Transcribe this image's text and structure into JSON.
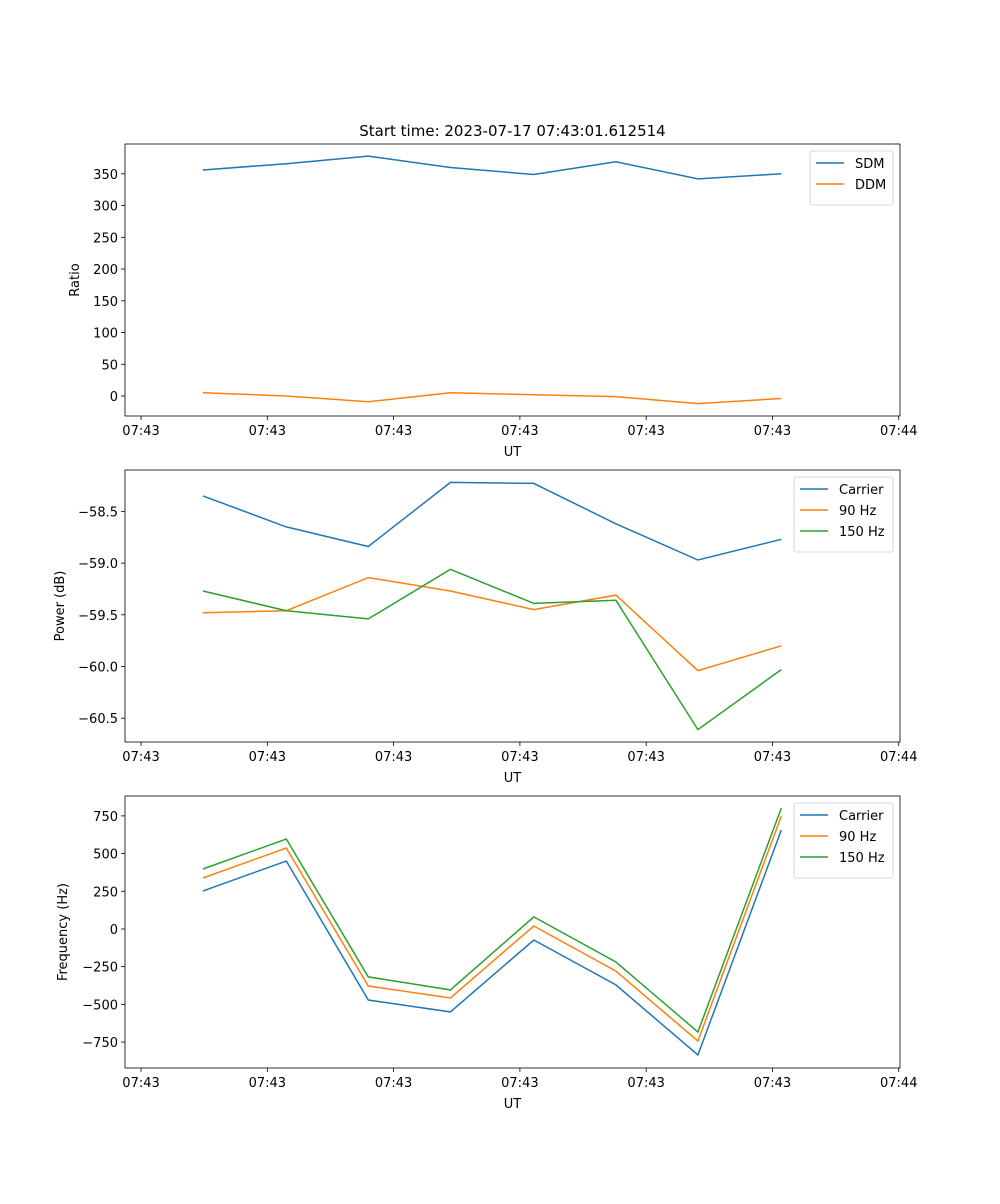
{
  "title": "Start time: 2023-07-17 07:43:01.612514",
  "colors": {
    "blue": "#1f77b4",
    "orange": "#ff7f0e",
    "green": "#2ca02c"
  },
  "chart_data": [
    {
      "type": "line",
      "title": "Start time: 2023-07-17 07:43:01.612514",
      "xlabel": "UT",
      "ylabel": "Ratio",
      "x": [
        0.49,
        1.15,
        1.8,
        2.45,
        3.11,
        3.76,
        4.41,
        5.07
      ],
      "xlim": [
        -0.127,
        6.01
      ],
      "xticks": [
        0,
        1,
        2,
        3,
        4,
        5,
        6
      ],
      "xtick_labels": [
        "07:43",
        "07:43",
        "07:43",
        "07:43",
        "07:43",
        "07:43",
        "07:44"
      ],
      "ylim": [
        -31.5,
        397
      ],
      "yticks": [
        0,
        50,
        100,
        150,
        200,
        250,
        300,
        350
      ],
      "ytick_labels": [
        "0",
        "50",
        "100",
        "150",
        "200",
        "250",
        "300",
        "350"
      ],
      "legend": "top-right",
      "series": [
        {
          "name": "SDM",
          "color": "#1f77b4",
          "values": [
            356,
            366,
            378,
            360,
            349,
            369,
            342,
            350
          ]
        },
        {
          "name": "DDM",
          "color": "#ff7f0e",
          "values": [
            5,
            0,
            -9,
            5,
            2,
            -1,
            -12,
            -4
          ]
        }
      ]
    },
    {
      "type": "line",
      "xlabel": "UT",
      "ylabel": "Power (dB)",
      "x": [
        0.49,
        1.15,
        1.8,
        2.45,
        3.11,
        3.76,
        4.41,
        5.07
      ],
      "xlim": [
        -0.127,
        6.01
      ],
      "xticks": [
        0,
        1,
        2,
        3,
        4,
        5,
        6
      ],
      "xtick_labels": [
        "07:43",
        "07:43",
        "07:43",
        "07:43",
        "07:43",
        "07:43",
        "07:44"
      ],
      "ylim": [
        -60.73,
        -58.1
      ],
      "yticks": [
        -58.5,
        -59.0,
        -59.5,
        -60.0,
        -60.5
      ],
      "ytick_labels": [
        "−58.5",
        "−59.0",
        "−59.5",
        "−60.0",
        "−60.5"
      ],
      "legend": "top-right",
      "series": [
        {
          "name": "Carrier",
          "color": "#1f77b4",
          "values": [
            -58.35,
            -58.65,
            -58.84,
            -58.22,
            -58.23,
            -58.62,
            -58.97,
            -58.77
          ]
        },
        {
          "name": "90 Hz",
          "color": "#ff7f0e",
          "values": [
            -59.48,
            -59.46,
            -59.14,
            -59.27,
            -59.45,
            -59.31,
            -60.04,
            -59.8
          ]
        },
        {
          "name": "150 Hz",
          "color": "#2ca02c",
          "values": [
            -59.27,
            -59.46,
            -59.54,
            -59.06,
            -59.39,
            -59.36,
            -60.61,
            -60.03
          ]
        }
      ]
    },
    {
      "type": "line",
      "xlabel": "UT",
      "ylabel": "Frequency (Hz)",
      "x": [
        0.49,
        1.15,
        1.8,
        2.45,
        3.11,
        3.76,
        4.41,
        5.07
      ],
      "xlim": [
        -0.127,
        6.01
      ],
      "xticks": [
        0,
        1,
        2,
        3,
        4,
        5,
        6
      ],
      "xtick_labels": [
        "07:43",
        "07:43",
        "07:43",
        "07:43",
        "07:43",
        "07:43",
        "07:44"
      ],
      "ylim": [
        -922,
        882
      ],
      "yticks": [
        750,
        500,
        250,
        0,
        -250,
        -500,
        -750
      ],
      "ytick_labels": [
        "750",
        "500",
        "250",
        "0",
        "−250",
        "−500",
        "−750"
      ],
      "legend": "top-right",
      "series": [
        {
          "name": "Carrier",
          "color": "#1f77b4",
          "values": [
            252,
            451,
            -471,
            -550,
            -73,
            -371,
            -836,
            656
          ]
        },
        {
          "name": "90 Hz",
          "color": "#ff7f0e",
          "values": [
            338,
            537,
            -378,
            -458,
            20,
            -279,
            -743,
            749
          ]
        },
        {
          "name": "150 Hz",
          "color": "#2ca02c",
          "values": [
            398,
            597,
            -318,
            -404,
            80,
            -219,
            -683,
            802
          ]
        }
      ]
    }
  ]
}
